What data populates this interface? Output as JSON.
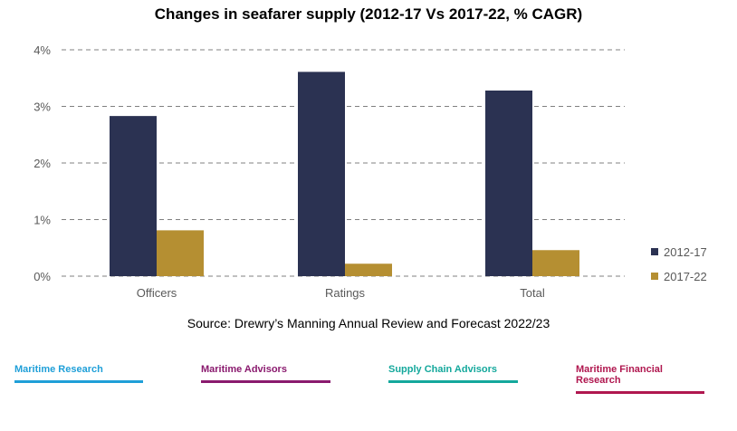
{
  "title": "Changes in seafarer supply (2012-17 Vs 2017-22, % CAGR)",
  "source": "Source: Drewry’s Manning Annual Review and Forecast 2022/23",
  "chart_data": {
    "type": "bar",
    "categories": [
      "Officers",
      "Ratings",
      "Total"
    ],
    "series": [
      {
        "name": "2012-17",
        "color": "#2b3252",
        "values": [
          2.83,
          3.61,
          3.28
        ]
      },
      {
        "name": "2017-22",
        "color": "#b58f32",
        "values": [
          0.81,
          0.22,
          0.46
        ]
      }
    ],
    "ylim": [
      0,
      4
    ],
    "yticks": [
      0,
      1,
      2,
      3,
      4
    ],
    "ytick_labels": [
      "0%",
      "1%",
      "2%",
      "3%",
      "4%"
    ],
    "grid": true,
    "grid_style": "dashed",
    "legend_position": "right"
  },
  "footer": {
    "links": [
      {
        "label": "Maritime Research",
        "color": "#1f9fd8"
      },
      {
        "label": "Maritime Advisors",
        "color": "#8a1a6e"
      },
      {
        "label": "Supply Chain Advisors",
        "color": "#14a89c"
      },
      {
        "label": "Maritime Financial Research",
        "color": "#b0174f"
      }
    ]
  }
}
